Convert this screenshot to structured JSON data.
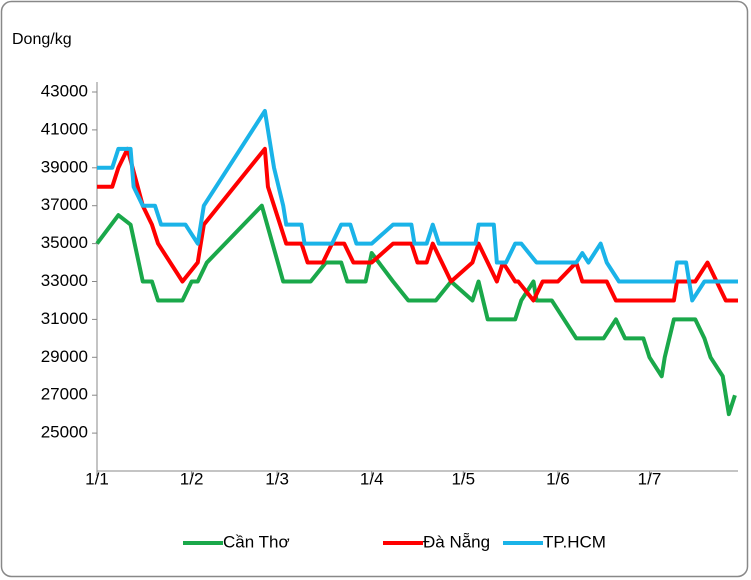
{
  "chart_data": {
    "type": "line",
    "y_label": "Dong/kg",
    "ylim": [
      23000,
      43000
    ],
    "yticks": [
      25000,
      27000,
      29000,
      31000,
      33000,
      35000,
      37000,
      39000,
      41000,
      43000
    ],
    "xlim": [
      0,
      210
    ],
    "xticks": [
      {
        "value": 0,
        "label": "1/1"
      },
      {
        "value": 31,
        "label": "1/2"
      },
      {
        "value": 59,
        "label": "1/3"
      },
      {
        "value": 90,
        "label": "1/4"
      },
      {
        "value": 120,
        "label": "1/5"
      },
      {
        "value": 151,
        "label": "1/6"
      },
      {
        "value": 181,
        "label": "1/7"
      }
    ],
    "legend": "bottom",
    "series": [
      {
        "name": "Cần Thơ",
        "color": "#1aa84a",
        "x": [
          0,
          7,
          11,
          15,
          18,
          20,
          28,
          31,
          33,
          36,
          54,
          61,
          70,
          75,
          80,
          82,
          88,
          90,
          97,
          102,
          111,
          116,
          123,
          125,
          128,
          137,
          139,
          143,
          144,
          149,
          157,
          166,
          170,
          173,
          179,
          181,
          185,
          186,
          189,
          196,
          199,
          201,
          205,
          207,
          209
        ],
        "values": [
          35000,
          36500,
          36000,
          33000,
          33000,
          32000,
          32000,
          33000,
          33000,
          34000,
          37000,
          33000,
          33000,
          34000,
          34000,
          33000,
          33000,
          34500,
          33000,
          32000,
          32000,
          33000,
          32000,
          33000,
          31000,
          31000,
          32000,
          33000,
          32000,
          32000,
          30000,
          30000,
          31000,
          30000,
          30000,
          29000,
          28000,
          29000,
          31000,
          31000,
          30000,
          29000,
          28000,
          26000,
          27000
        ]
      },
      {
        "name": "Đà Nẵng",
        "color": "#ff0000",
        "x": [
          0,
          5,
          7,
          10,
          15,
          18,
          20,
          28,
          33,
          35,
          55,
          56,
          60,
          62,
          67,
          69,
          74,
          77,
          81,
          84,
          90,
          97,
          103,
          105,
          108,
          110,
          113,
          116,
          123,
          125,
          128,
          131,
          133,
          137,
          138,
          143,
          146,
          151,
          157,
          159,
          167,
          170,
          189,
          190,
          196,
          200,
          206,
          210
        ],
        "values": [
          38000,
          38000,
          39000,
          40000,
          37000,
          36000,
          35000,
          33000,
          34000,
          36000,
          40000,
          38000,
          36000,
          35000,
          35000,
          34000,
          34000,
          35000,
          35000,
          34000,
          34000,
          35000,
          35000,
          34000,
          34000,
          35000,
          34000,
          33000,
          34000,
          35000,
          34000,
          33000,
          34000,
          33000,
          33000,
          32000,
          33000,
          33000,
          34000,
          33000,
          33000,
          32000,
          32000,
          33000,
          33000,
          34000,
          32000,
          32000
        ]
      },
      {
        "name": "TP.HCM",
        "color": "#1ab3e8",
        "x": [
          0,
          5,
          7,
          11,
          12,
          15,
          19,
          21,
          29,
          33,
          35,
          55,
          58,
          61,
          62,
          67,
          68,
          77,
          80,
          83,
          85,
          90,
          97,
          103,
          104,
          108,
          110,
          112,
          124,
          125,
          130,
          131,
          134,
          137,
          139,
          144,
          157,
          159,
          161,
          165,
          167,
          171,
          189,
          190,
          193,
          195,
          199,
          210
        ],
        "values": [
          39000,
          39000,
          40000,
          40000,
          38000,
          37000,
          37000,
          36000,
          36000,
          35000,
          37000,
          42000,
          39000,
          37000,
          36000,
          36000,
          35000,
          35000,
          36000,
          36000,
          35000,
          35000,
          36000,
          36000,
          35000,
          35000,
          36000,
          35000,
          35000,
          36000,
          36000,
          34000,
          34000,
          35000,
          35000,
          34000,
          34000,
          34500,
          34000,
          35000,
          34000,
          33000,
          33000,
          34000,
          34000,
          32000,
          33000,
          33000
        ]
      }
    ]
  }
}
